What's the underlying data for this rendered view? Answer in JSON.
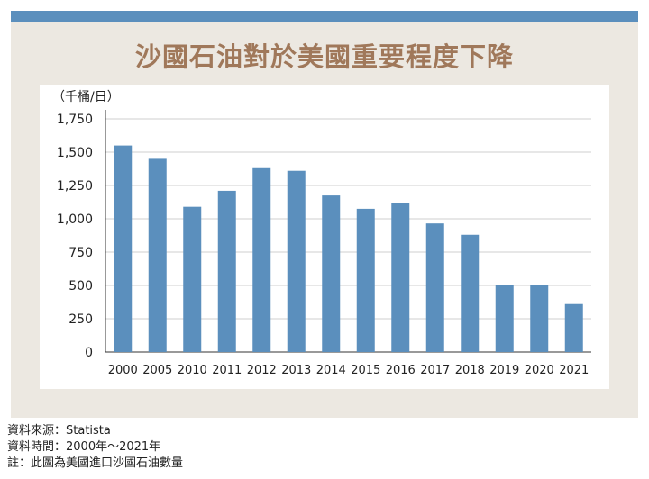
{
  "title": "沙國石油對於美國重要程度下降",
  "colors": {
    "bar": "#5b8fbd",
    "title": "#a0785a",
    "panel": "#ece8e1",
    "top_bar": "#5b8fbd"
  },
  "chart_data": {
    "type": "bar",
    "title": "沙國石油對於美國重要程度下降",
    "ylabel": "（千桶/日）",
    "xlabel": "",
    "ylim": [
      0,
      1750
    ],
    "yticks": [
      0,
      250,
      500,
      750,
      1000,
      1250,
      1500,
      1750
    ],
    "ytick_labels": [
      "0",
      "250",
      "500",
      "750",
      "1,000",
      "1,250",
      "1,500",
      "1,750"
    ],
    "grid": true,
    "categories": [
      "2000",
      "2005",
      "2010",
      "2011",
      "2012",
      "2013",
      "2014",
      "2015",
      "2016",
      "2017",
      "2018",
      "2019",
      "2020",
      "2021"
    ],
    "values": [
      1550,
      1450,
      1090,
      1210,
      1380,
      1360,
      1175,
      1075,
      1120,
      965,
      880,
      505,
      505,
      360
    ]
  },
  "footer": {
    "source": "資料來源：Statista",
    "period": "資料時間：2000年～2021年",
    "note": "註：此圖為美國進口沙國石油數量"
  }
}
